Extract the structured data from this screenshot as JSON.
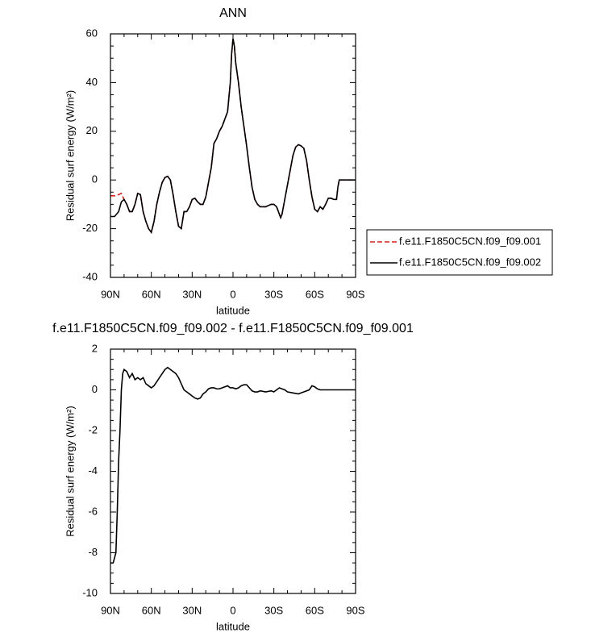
{
  "chart_data": [
    {
      "type": "line",
      "title": "ANN",
      "xlabel": "latitude",
      "ylabel": "Residual surf energy (W/m²)",
      "xlim": [
        90,
        -90
      ],
      "ylim": [
        -40,
        60
      ],
      "xticks": [
        {
          "value": 90,
          "label": "90N"
        },
        {
          "value": 60,
          "label": "60N"
        },
        {
          "value": 30,
          "label": "30N"
        },
        0,
        {
          "value": -30,
          "label": "30S"
        },
        {
          "value": -60,
          "label": "60S"
        },
        {
          "value": -90,
          "label": "90S"
        }
      ],
      "yticks": [
        -40,
        -20,
        0,
        20,
        40,
        60
      ],
      "legend": "right",
      "x": [
        90,
        87,
        84,
        82,
        80,
        78,
        76,
        74,
        72,
        70,
        68,
        66,
        64,
        62,
        60,
        58,
        56,
        54,
        52,
        50,
        48,
        46,
        44,
        42,
        40,
        38,
        36,
        34,
        32,
        30,
        28,
        26,
        24,
        22,
        20,
        18,
        16,
        14,
        12,
        10,
        8,
        6,
        4,
        2,
        1,
        0,
        -1,
        -2,
        -4,
        -6,
        -8,
        -10,
        -12,
        -14,
        -16,
        -18,
        -20,
        -22,
        -24,
        -26,
        -28,
        -30,
        -32,
        -34,
        -35,
        -36,
        -38,
        -40,
        -42,
        -44,
        -46,
        -48,
        -50,
        -52,
        -54,
        -56,
        -58,
        -60,
        -62,
        -64,
        -66,
        -68,
        -70,
        -72,
        -74,
        -76,
        -77,
        -78,
        -80,
        -90
      ],
      "series": [
        {
          "name": "f.e11.F1850C5CN.f09_f09.001",
          "color": "#d62020",
          "linestyle": "dashed",
          "values": [
            -6.5,
            -6.5,
            -6,
            -5.5,
            -8,
            -10,
            -13,
            -13,
            -10,
            -5.5,
            -6,
            -13,
            -17,
            -20,
            -21.5,
            -17,
            -10,
            -5,
            -1,
            1,
            1.5,
            0,
            -6,
            -13,
            -19,
            -20,
            -13,
            -13,
            -11,
            -8,
            -7.5,
            -9,
            -10,
            -10,
            -7,
            -1,
            5,
            15,
            17,
            20,
            22,
            25,
            28,
            40,
            52,
            58,
            55,
            48,
            40,
            30,
            22,
            14,
            5,
            -3,
            -8,
            -10,
            -11,
            -11,
            -11,
            -10.5,
            -10,
            -10,
            -11,
            -14,
            -15.5,
            -14,
            -8,
            -2,
            4,
            10,
            13.5,
            14.5,
            14,
            13,
            8,
            0,
            -7,
            -12,
            -13,
            -11,
            -12,
            -10,
            -7.5,
            -7.5,
            -8,
            -8,
            -3,
            0,
            0,
            0
          ]
        },
        {
          "name": "f.e11.F1850C5CN.f09_f09.002",
          "color": "#000000",
          "linestyle": "solid",
          "values": [
            -15,
            -15,
            -13,
            -9,
            -8,
            -10,
            -13,
            -13,
            -10,
            -5.5,
            -6,
            -13,
            -17,
            -20,
            -21.5,
            -17,
            -10,
            -5,
            -1,
            1,
            1.5,
            0,
            -6,
            -13,
            -19,
            -20,
            -13,
            -13,
            -11,
            -8,
            -7.5,
            -9,
            -10,
            -10,
            -7,
            -1,
            5,
            15,
            17,
            20,
            22,
            25,
            28,
            40,
            52,
            58,
            55,
            48,
            40,
            30,
            22,
            14,
            5,
            -3,
            -8,
            -10,
            -11,
            -11,
            -11,
            -10.5,
            -10,
            -10,
            -11,
            -14,
            -15.5,
            -14,
            -8,
            -2,
            4,
            10,
            13.5,
            14.5,
            14,
            13,
            8,
            0,
            -7,
            -12,
            -13,
            -11,
            -12,
            -10,
            -7.5,
            -7.5,
            -8,
            -8,
            -3,
            0,
            0,
            0
          ]
        }
      ]
    },
    {
      "type": "line",
      "title": "f.e11.F1850C5CN.f09_f09.002 - f.e11.F1850C5CN.f09_f09.001",
      "xlabel": "latitude",
      "ylabel": "Residual surf energy (W/m²)",
      "xlim": [
        90,
        -90
      ],
      "ylim": [
        -10,
        2
      ],
      "xticks": [
        {
          "value": 90,
          "label": "90N"
        },
        {
          "value": 60,
          "label": "60N"
        },
        {
          "value": 30,
          "label": "30N"
        },
        0,
        {
          "value": -30,
          "label": "30S"
        },
        {
          "value": -60,
          "label": "60S"
        },
        {
          "value": -90,
          "label": "90S"
        }
      ],
      "yticks": [
        -10,
        -8,
        -6,
        -4,
        -2,
        0,
        2
      ],
      "x": [
        90,
        88,
        86,
        85,
        84,
        83,
        82,
        81,
        80,
        78,
        76,
        74,
        72,
        70,
        68,
        66,
        64,
        62,
        60,
        58,
        56,
        54,
        52,
        50,
        48,
        46,
        44,
        42,
        40,
        38,
        36,
        34,
        32,
        30,
        28,
        26,
        24,
        22,
        20,
        18,
        16,
        14,
        12,
        10,
        8,
        6,
        4,
        2,
        0,
        -2,
        -4,
        -6,
        -8,
        -10,
        -12,
        -14,
        -16,
        -18,
        -20,
        -24,
        -28,
        -30,
        -32,
        -34,
        -36,
        -38,
        -40,
        -44,
        -48,
        -50,
        -52,
        -56,
        -58,
        -60,
        -62,
        -64,
        -66,
        -70,
        -90
      ],
      "series": [
        {
          "color": "#000000",
          "linestyle": "solid",
          "values": [
            -8.5,
            -8.5,
            -8,
            -6,
            -3.5,
            -2,
            0,
            0.8,
            1,
            0.9,
            0.6,
            0.8,
            0.5,
            0.6,
            0.5,
            0.6,
            0.3,
            0.2,
            0.1,
            0.2,
            0.4,
            0.6,
            0.8,
            1.0,
            1.1,
            1.0,
            0.9,
            0.8,
            0.6,
            0.3,
            0.0,
            -0.1,
            -0.2,
            -0.3,
            -0.4,
            -0.45,
            -0.4,
            -0.2,
            -0.1,
            0.05,
            0.1,
            0.1,
            0.05,
            0.05,
            0.1,
            0.15,
            0.2,
            0.1,
            0.1,
            0.05,
            0.1,
            0.2,
            0.25,
            0.25,
            0.1,
            -0.05,
            -0.1,
            -0.1,
            -0.05,
            -0.1,
            -0.05,
            -0.1,
            0.0,
            0.1,
            0.05,
            0.0,
            -0.1,
            -0.15,
            -0.2,
            -0.15,
            -0.1,
            0.0,
            0.2,
            0.15,
            0.05,
            0,
            0,
            0,
            0
          ]
        }
      ]
    }
  ]
}
